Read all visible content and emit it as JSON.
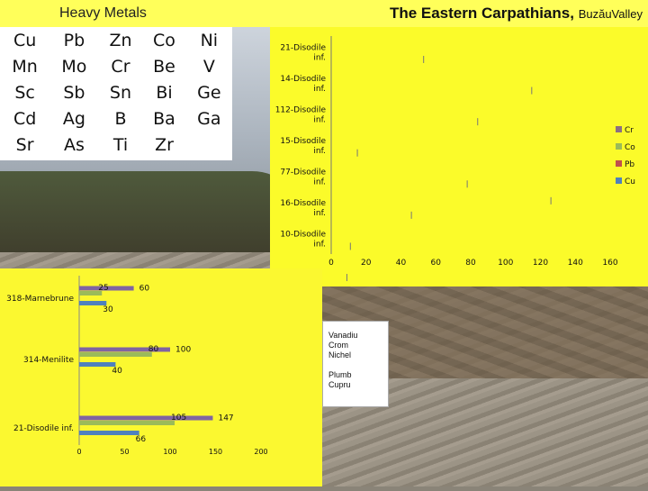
{
  "header": {
    "left_title": "Heavy Metals",
    "main_title": "The Eastern Carpathians,",
    "main_subtitle": "BuzăuValley"
  },
  "metals_table": [
    [
      "Cu",
      "Pb",
      "Zn",
      "Co",
      "Ni"
    ],
    [
      "Mn",
      "Mo",
      "Cr",
      "Be",
      "V"
    ],
    [
      "Sc",
      "Sb",
      "Sn",
      "Bi",
      "Ge"
    ],
    [
      "Cd",
      "Ag",
      "B",
      "Ba",
      "Ga"
    ],
    [
      "Sr",
      "As",
      "Ti",
      "Zr",
      ""
    ]
  ],
  "legend_box": [
    "Vanadiu",
    "Crom",
    "Nichel",
    "",
    "Plumb",
    "Cupru"
  ],
  "chart_data": [
    {
      "type": "bar",
      "orientation": "horizontal",
      "categories": [
        "21-Disodile inf.",
        "14-Disodile inf.",
        "112-Disodile inf.",
        "15-Disodile inf.",
        "77-Disodile inf.",
        "16-Disodile inf.",
        "10-Disodile inf."
      ],
      "series": [
        {
          "name": "Cr",
          "color": "#8b6f82",
          "values": [
            0,
            0,
            0,
            0,
            0,
            0,
            0
          ]
        },
        {
          "name": "Co",
          "color": "#9bbb59",
          "values": [
            0,
            0,
            0,
            0,
            0,
            0,
            0
          ]
        },
        {
          "name": "Pb",
          "color": "#c0504d",
          "values": [
            0,
            0,
            0,
            0,
            0,
            0,
            0
          ]
        },
        {
          "name": "Cu",
          "color": "#4f81bd",
          "values": [
            0,
            0,
            0,
            0,
            0,
            0,
            0
          ]
        }
      ],
      "ticks": [
        "0",
        "20",
        "40",
        "60",
        "80",
        "100",
        "120",
        "140",
        "160"
      ],
      "tick_marks": [
        [
          53,
          0
        ],
        [
          115,
          0
        ],
        [
          84,
          0
        ],
        [
          15,
          0
        ],
        [
          78,
          0
        ],
        [
          46,
          126
        ],
        [
          11,
          0
        ],
        [
          9,
          0
        ]
      ],
      "xlim": [
        0,
        160
      ],
      "legend_position": "right"
    },
    {
      "type": "bar",
      "orientation": "horizontal",
      "categories": [
        "318-Marnebrune",
        "314-Menilite",
        "21-Disodile inf."
      ],
      "series": [
        {
          "name": "Vanadiu",
          "color": "#4bacc6",
          "values": [
            0,
            0,
            0
          ]
        },
        {
          "name": "Crom",
          "color": "#8064a2",
          "values": [
            60,
            100,
            147
          ]
        },
        {
          "name": "Nichel",
          "color": "#9bbb59",
          "values": [
            25,
            80,
            105
          ]
        },
        {
          "name": "Plumb",
          "color": "#c0504d",
          "values": [
            0,
            0,
            0
          ]
        },
        {
          "name": "Cupru",
          "color": "#4f81bd",
          "values": [
            30,
            40,
            66
          ]
        }
      ],
      "labels": [
        {
          "category": "318-Marnebrune",
          "series": "Nichel",
          "text": "25"
        },
        {
          "category": "318-Marnebrune",
          "series": "Crom",
          "text": "60"
        },
        {
          "category": "318-Marnebrune",
          "series": "Cupru",
          "text": "30"
        },
        {
          "category": "314-Menilite",
          "series": "Nichel",
          "text": "80"
        },
        {
          "category": "314-Menilite",
          "series": "Crom",
          "text": "100"
        },
        {
          "category": "314-Menilite",
          "series": "Cupru",
          "text": "40"
        },
        {
          "category": "21-Disodile inf.",
          "series": "Nichel",
          "text": "105"
        },
        {
          "category": "21-Disodile inf.",
          "series": "Crom",
          "text": "147"
        },
        {
          "category": "21-Disodile inf.",
          "series": "Cupru",
          "text": "66"
        }
      ],
      "ticks": [
        "0",
        "50",
        "100",
        "150",
        "200"
      ],
      "xlim": [
        0,
        200
      ]
    }
  ]
}
